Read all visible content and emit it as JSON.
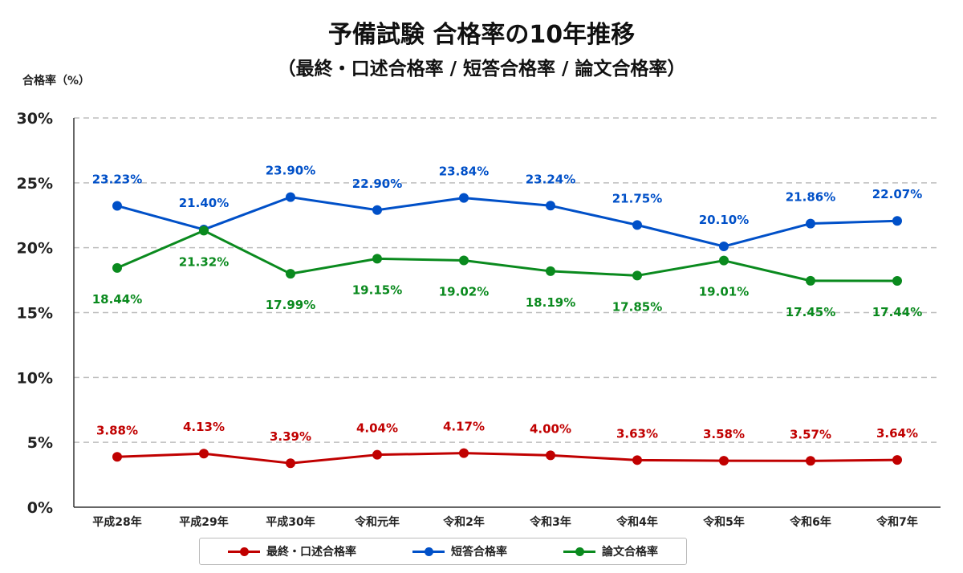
{
  "chart_data": {
    "type": "line",
    "title": "予備試験 合格率の10年推移",
    "subtitle": "（最終・口述合格率 / 短答合格率 / 論文合格率）",
    "ylabel": "合格率（%）",
    "xlabel": "",
    "categories": [
      "平成28年",
      "平成29年",
      "平成30年",
      "令和元年",
      "令和2年",
      "令和3年",
      "令和4年",
      "令和5年",
      "令和6年",
      "令和7年"
    ],
    "ylim": [
      0,
      30
    ],
    "yticks": [
      0,
      5,
      10,
      15,
      20,
      25,
      30
    ],
    "ytick_labels": [
      "0%",
      "5%",
      "10%",
      "15%",
      "20%",
      "25%",
      "30%"
    ],
    "grid": true,
    "legend_position": "bottom",
    "series": [
      {
        "name": "最終・口述合格率",
        "color": "#c00000",
        "label_pos": "above",
        "values": [
          3.88,
          4.13,
          3.39,
          4.04,
          4.17,
          4.0,
          3.63,
          3.58,
          3.57,
          3.64
        ],
        "labels": [
          "3.88%",
          "4.13%",
          "3.39%",
          "4.04%",
          "4.17%",
          "4.00%",
          "3.63%",
          "3.58%",
          "3.57%",
          "3.64%"
        ]
      },
      {
        "name": "短答合格率",
        "color": "#0050c8",
        "label_pos": "above",
        "values": [
          23.23,
          21.4,
          23.9,
          22.9,
          23.84,
          23.24,
          21.75,
          20.1,
          21.86,
          22.07
        ],
        "labels": [
          "23.23%",
          "21.40%",
          "23.90%",
          "22.90%",
          "23.84%",
          "23.24%",
          "21.75%",
          "20.10%",
          "21.86%",
          "22.07%"
        ]
      },
      {
        "name": "論文合格率",
        "color": "#0a8a1e",
        "label_pos": "below",
        "values": [
          18.44,
          21.32,
          17.99,
          19.15,
          19.02,
          18.19,
          17.85,
          19.01,
          17.45,
          17.44
        ],
        "labels": [
          "18.44%",
          "21.32%",
          "17.99%",
          "19.15%",
          "19.02%",
          "18.19%",
          "17.85%",
          "19.01%",
          "17.45%",
          "17.44%"
        ]
      }
    ]
  }
}
